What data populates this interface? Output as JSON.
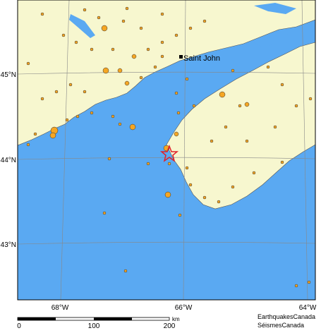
{
  "map": {
    "latitude_labels": [
      "45°N",
      "44°N",
      "43°N"
    ],
    "longitude_labels": [
      "68°W",
      "66°W",
      "64°W"
    ],
    "city": "Saint John",
    "scale": {
      "labels": [
        "0",
        "100",
        "200"
      ],
      "unit": "km"
    },
    "credit": [
      "EarthquakesCanada",
      "SéismesCanada"
    ]
  }
}
